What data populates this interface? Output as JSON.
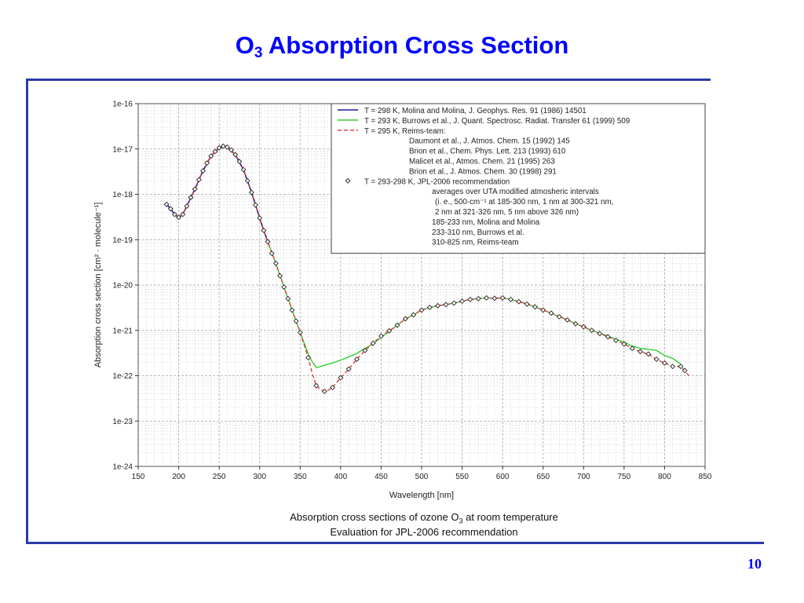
{
  "slide": {
    "title_main": "O",
    "title_sub": "3",
    "title_rest": " Absorption Cross Section",
    "page_number": "10"
  },
  "caption": {
    "line1_pre": "Absorption cross sections of ozone O",
    "line1_sub": "3",
    "line1_post": " at room temperature",
    "line2": "Evaluation for JPL-2006 recommendation"
  },
  "chart_data": {
    "type": "line",
    "xlabel": "Wavelength [nm]",
    "ylabel": "Absorption cross section [cm² · molecule⁻¹]",
    "xlim": [
      150,
      850
    ],
    "ylim": [
      1e-24,
      1e-16
    ],
    "y_scale": "log",
    "x_ticks": [
      "150",
      "200",
      "250",
      "300",
      "350",
      "400",
      "450",
      "500",
      "550",
      "600",
      "650",
      "700",
      "750",
      "800",
      "850"
    ],
    "y_ticks": [
      "1e-24",
      "1e-23",
      "1e-22",
      "1e-21",
      "1e-20",
      "1e-19",
      "1e-18",
      "1e-17",
      "1e-16"
    ],
    "grid": true,
    "legend_position": "top-right",
    "legend": [
      {
        "text": "T = 298 K, Molina and Molina, J. Geophys. Res. 91 (1986) 14501",
        "marker": "line",
        "color": "#1a1aa0",
        "dash": false
      },
      {
        "text": "T = 293 K, Burrows et al., J. Quant. Spectrosc. Radiat. Transfer 61 (1999) 509",
        "marker": "line",
        "color": "#22cc22",
        "dash": false
      },
      {
        "text": "T = 295 K, Reims-team:",
        "marker": "line",
        "color": "#e03030",
        "dash": true
      },
      {
        "text": "Daumont et al., J. Atmos. Chem. 15 (1992) 145",
        "marker": "none",
        "indent": 1
      },
      {
        "text": "Brion et al., Chem. Phys. Lett. 213 (1993) 610",
        "marker": "none",
        "indent": 1
      },
      {
        "text": "Malicet et al., Atmos. Chem. 21 (1995) 263",
        "marker": "none",
        "indent": 1
      },
      {
        "text": "Brion et al., J. Atmos. Chem. 30 (1998) 291",
        "marker": "none",
        "indent": 1
      },
      {
        "text": "T = 293-298 K, JPL-2006 recommendation",
        "marker": "diamond",
        "color": "#222222"
      },
      {
        "text": "averages over UTA modified atmosheric intervals",
        "marker": "none",
        "indent": 2
      },
      {
        "text": "(i. e., 500-cm⁻¹ at 185-300 nm, 1 nm at 300-321 nm,",
        "marker": "none",
        "indent": 3
      },
      {
        "text": "2 nm at 321-326 nm, 5 nm above 326 nm)",
        "marker": "none",
        "indent": 3
      },
      {
        "text": "185-233 nm, Molina and Molina",
        "marker": "none",
        "indent": 2
      },
      {
        "text": "233-310 nm, Burrows et al.",
        "marker": "none",
        "indent": 2
      },
      {
        "text": "310-825 nm, Reims-team",
        "marker": "none",
        "indent": 2
      }
    ],
    "series": [
      {
        "key": "molina",
        "color": "#1a1aa0",
        "x": [
          185,
          190,
          195,
          200,
          205,
          210,
          220,
          230,
          240,
          250,
          255,
          260,
          270,
          280,
          290,
          300,
          305,
          310
        ],
        "y": [
          6e-19,
          4.8e-19,
          3.6e-19,
          3.1e-19,
          3.6e-19,
          5.5e-19,
          1.3e-18,
          3.3e-18,
          7e-18,
          1.06e-17,
          1.15e-17,
          1.1e-17,
          7.5e-18,
          3.5e-18,
          1.1e-18,
          3e-19,
          1.6e-19,
          9e-20
        ]
      },
      {
        "key": "burrows",
        "color": "#22cc22",
        "x": [
          230,
          240,
          250,
          255,
          260,
          270,
          280,
          290,
          300,
          310,
          320,
          330,
          340,
          350,
          360,
          365,
          370,
          375,
          380,
          390,
          400,
          410,
          420,
          430,
          440,
          450,
          460,
          470,
          480,
          490,
          500,
          510,
          520,
          530,
          540,
          550,
          560,
          570,
          580,
          590,
          600,
          610,
          620,
          630,
          640,
          650,
          660,
          670,
          680,
          690,
          700,
          710,
          720,
          730,
          740,
          750,
          760,
          770,
          780,
          790,
          800,
          810,
          820
        ],
        "y": [
          3.3e-18,
          7e-18,
          1.06e-17,
          1.15e-17,
          1.1e-17,
          7.5e-18,
          3.5e-18,
          1.1e-18,
          3e-19,
          9e-20,
          3e-20,
          9e-21,
          2.8e-21,
          9e-22,
          3e-22,
          2e-22,
          1.5e-22,
          1.6e-22,
          1.7e-22,
          1.9e-22,
          2.2e-22,
          2.6e-22,
          3.1e-22,
          4e-22,
          5e-22,
          7e-22,
          9.5e-22,
          1.3e-21,
          1.8e-21,
          2.2e-21,
          2.8e-21,
          3.2e-21,
          3.5e-21,
          3.7e-21,
          4e-21,
          4.4e-21,
          4.8e-21,
          5e-21,
          5.2e-21,
          5.1e-21,
          5.2e-21,
          4.8e-21,
          4.3e-21,
          3.8e-21,
          3.3e-21,
          2.8e-21,
          2.4e-21,
          2e-21,
          1.7e-21,
          1.4e-21,
          1.2e-21,
          1e-21,
          8.7e-22,
          7.5e-22,
          6.3e-22,
          5.5e-22,
          4.5e-22,
          4e-22,
          3.8e-22,
          3.6e-22,
          2.8e-22,
          2.4e-22,
          1.8e-22
        ]
      },
      {
        "key": "reims",
        "color": "#e03030",
        "x": [
          195,
          200,
          205,
          210,
          220,
          230,
          240,
          250,
          255,
          260,
          270,
          280,
          290,
          300,
          310,
          320,
          330,
          340,
          350,
          360,
          365,
          370,
          375,
          380,
          385,
          390,
          395,
          400,
          410,
          420,
          430,
          440,
          450,
          460,
          470,
          480,
          490,
          500,
          510,
          520,
          530,
          540,
          550,
          560,
          570,
          580,
          590,
          600,
          610,
          620,
          630,
          640,
          650,
          660,
          670,
          680,
          690,
          700,
          710,
          720,
          730,
          740,
          750,
          760,
          770,
          780,
          790,
          800,
          810,
          820,
          830
        ],
        "y": [
          3.6e-19,
          3.1e-19,
          3.6e-19,
          5.5e-19,
          1.3e-18,
          3.3e-18,
          7e-18,
          1.06e-17,
          1.15e-17,
          1.1e-17,
          7.5e-18,
          3.5e-18,
          1.1e-18,
          3e-19,
          9e-20,
          3e-20,
          9e-21,
          2.8e-21,
          9e-22,
          2.5e-22,
          1.1e-22,
          6e-23,
          5e-23,
          4.5e-23,
          4.8e-23,
          5.5e-23,
          7e-23,
          9e-23,
          1.4e-22,
          2.3e-22,
          3.6e-22,
          5.2e-22,
          7.5e-22,
          9.8e-22,
          1.3e-21,
          1.8e-21,
          2.2e-21,
          2.8e-21,
          3.2e-21,
          3.5e-21,
          3.7e-21,
          4e-21,
          4.4e-21,
          4.8e-21,
          5e-21,
          5.2e-21,
          5.1e-21,
          5.2e-21,
          4.8e-21,
          4.3e-21,
          3.8e-21,
          3.3e-21,
          2.8e-21,
          2.4e-21,
          2e-21,
          1.7e-21,
          1.4e-21,
          1.2e-21,
          1e-21,
          8.5e-22,
          7.2e-22,
          6e-22,
          5e-22,
          4e-22,
          3.4e-22,
          3e-22,
          2.3e-22,
          1.9e-22,
          1.6e-22,
          1.6e-22,
          1e-22
        ]
      }
    ],
    "points": {
      "key": "jpl",
      "color": "#222222",
      "x": [
        185,
        190,
        195,
        200,
        205,
        210,
        215,
        220,
        225,
        230,
        235,
        240,
        245,
        250,
        255,
        260,
        265,
        270,
        275,
        280,
        285,
        290,
        295,
        300,
        305,
        310,
        315,
        320,
        325,
        330,
        335,
        340,
        345,
        350,
        360,
        370,
        380,
        390,
        400,
        410,
        420,
        430,
        440,
        450,
        460,
        470,
        480,
        490,
        500,
        510,
        520,
        530,
        540,
        550,
        560,
        570,
        580,
        590,
        600,
        610,
        620,
        630,
        640,
        650,
        660,
        670,
        680,
        690,
        700,
        710,
        720,
        730,
        740,
        750,
        760,
        770,
        780,
        790,
        800,
        810,
        820,
        825
      ],
      "y": [
        6e-19,
        4.8e-19,
        3.6e-19,
        3.1e-19,
        3.6e-19,
        5.5e-19,
        8.5e-19,
        1.3e-18,
        2.1e-18,
        3.3e-18,
        4.9e-18,
        7e-18,
        8.8e-18,
        1.06e-17,
        1.15e-17,
        1.1e-17,
        9.5e-18,
        7.5e-18,
        5.3e-18,
        3.5e-18,
        2e-18,
        1.1e-18,
        5.8e-19,
        3e-19,
        1.6e-19,
        9e-20,
        5e-20,
        3e-20,
        1.6e-20,
        9e-21,
        5e-21,
        2.8e-21,
        1.6e-21,
        9e-22,
        2.5e-22,
        6e-23,
        4.5e-23,
        5.5e-23,
        9e-23,
        1.4e-22,
        2.3e-22,
        3.6e-22,
        5.2e-22,
        7.5e-22,
        9.8e-22,
        1.3e-21,
        1.8e-21,
        2.2e-21,
        2.8e-21,
        3.2e-21,
        3.5e-21,
        3.7e-21,
        4e-21,
        4.4e-21,
        4.8e-21,
        5e-21,
        5.2e-21,
        5.1e-21,
        5.2e-21,
        4.8e-21,
        4.3e-21,
        3.8e-21,
        3.3e-21,
        2.8e-21,
        2.4e-21,
        2e-21,
        1.7e-21,
        1.4e-21,
        1.2e-21,
        1e-21,
        8.5e-22,
        7.2e-22,
        6e-22,
        5e-22,
        4e-22,
        3.4e-22,
        3e-22,
        2.3e-22,
        1.9e-22,
        1.6e-22,
        1.6e-22,
        1.3e-22
      ]
    }
  }
}
